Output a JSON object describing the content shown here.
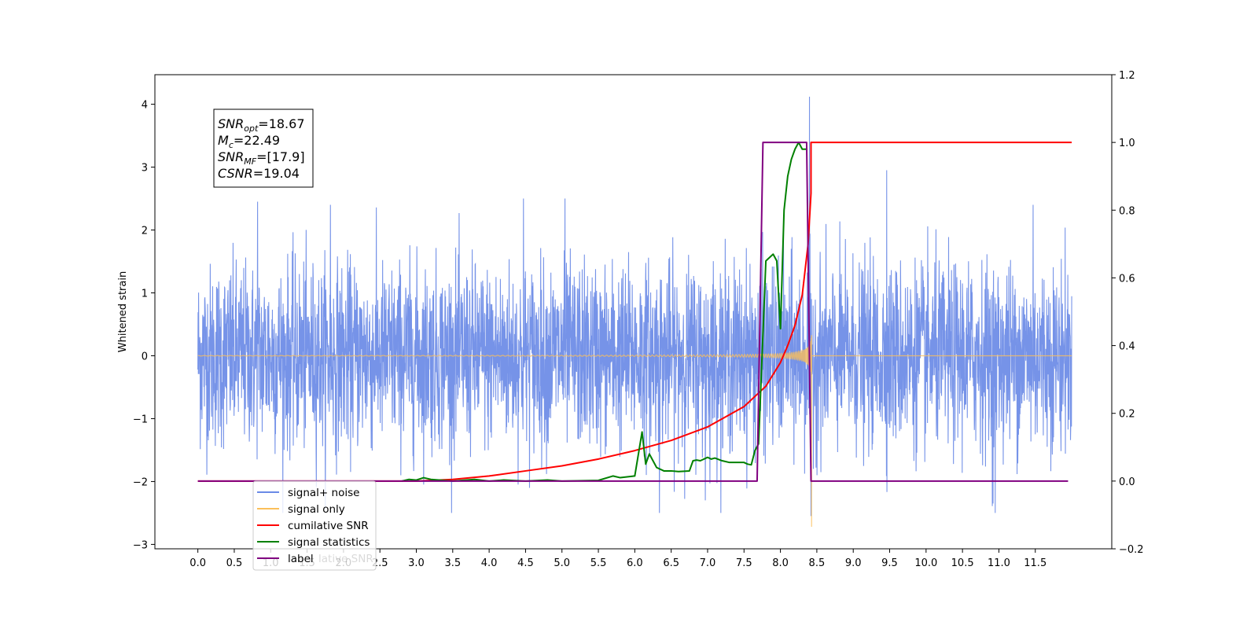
{
  "chart_data": {
    "type": "line",
    "xlabel": "",
    "ylabel": "Whitened strain",
    "xlim": [
      -0.59,
      12.55
    ],
    "ylim": [
      -3.07,
      4.47
    ],
    "y2lim": [
      -0.2,
      1.2
    ],
    "xticks": [
      0.0,
      0.5,
      1.0,
      1.5,
      2.0,
      2.5,
      3.0,
      3.5,
      4.0,
      4.5,
      5.0,
      5.5,
      6.0,
      6.5,
      7.0,
      7.5,
      8.0,
      8.5,
      9.0,
      9.5,
      10.0,
      10.5,
      11.0,
      11.5
    ],
    "xtick_labels": [
      "0.0",
      "0.5",
      "1.0",
      "1.5",
      "2.0",
      "2.5",
      "3.0",
      "3.5",
      "4.0",
      "4.5",
      "5.0",
      "5.5",
      "6.0",
      "6.5",
      "7.0",
      "7.5",
      "8.0",
      "8.5",
      "9.0",
      "9.5",
      "10.0",
      "10.5",
      "11.0",
      "11.5"
    ],
    "yticks": [
      -3,
      -2,
      -1,
      0,
      1,
      2,
      3,
      4
    ],
    "ytick_labels": [
      "−3",
      "−2",
      "−1",
      "0",
      "1",
      "2",
      "3",
      "4"
    ],
    "y2ticks": [
      -0.2,
      0.0,
      0.2,
      0.4,
      0.6,
      0.8,
      1.0,
      1.2
    ],
    "y2tick_labels": [
      "−0.2",
      "0.0",
      "0.2",
      "0.4",
      "0.6",
      "0.8",
      "1.0",
      "1.2"
    ],
    "grid": false,
    "legend_position": "lower-left",
    "info_box": {
      "lines": [
        {
          "main": "SNR",
          "sub": "opt",
          "value": "=18.67"
        },
        {
          "main": "M",
          "sub": "c",
          "value": "=22.49"
        },
        {
          "main": "SNR",
          "sub": "MF",
          "value": "=[17.9]"
        },
        {
          "main": "CSNR",
          "sub": "",
          "value": "=19.04"
        }
      ]
    },
    "series": [
      {
        "name": "signal+ noise",
        "color": "#6a8ae6",
        "axis": "left",
        "style": "noise",
        "x_range": [
          0.0,
          12.0
        ],
        "samples": 3600,
        "noise_sigma": 0.72,
        "noise_range": [
          -2.5,
          2.5
        ],
        "spikes": [
          {
            "x": 0.82,
            "y": 2.45
          },
          {
            "x": 1.82,
            "y": 2.4
          },
          {
            "x": 4.47,
            "y": 2.5
          },
          {
            "x": 5.04,
            "y": 2.5
          },
          {
            "x": 9.46,
            "y": 2.95
          },
          {
            "x": 11.47,
            "y": 2.4
          },
          {
            "x": 8.4,
            "y": 4.12
          },
          {
            "x": 6.34,
            "y": -2.5
          },
          {
            "x": 10.95,
            "y": -2.5
          },
          {
            "x": 10.92,
            "y": -2.35
          },
          {
            "x": 8.42,
            "y": -2.55
          },
          {
            "x": 6.97,
            "y": -2.3
          }
        ],
        "chirp_end": 8.43
      },
      {
        "name": "signal only",
        "color": "#fbbf5a",
        "axis": "left",
        "style": "chirp",
        "x_range": [
          0.0,
          12.0
        ],
        "tc": 8.43,
        "amp_peak": 2.6,
        "dip": -2.72
      },
      {
        "name": "cumilative SNR",
        "color": "#ff0000",
        "axis": "right",
        "x": [
          0.0,
          3.0,
          3.5,
          4.0,
          4.5,
          5.0,
          5.5,
          6.0,
          6.5,
          7.0,
          7.5,
          7.8,
          8.0,
          8.1,
          8.2,
          8.3,
          8.38,
          8.42,
          8.42,
          12.0
        ],
        "y": [
          0.0,
          0.0,
          0.005,
          0.015,
          0.03,
          0.045,
          0.065,
          0.09,
          0.12,
          0.16,
          0.22,
          0.28,
          0.35,
          0.4,
          0.46,
          0.55,
          0.7,
          0.85,
          1.0,
          1.0
        ]
      },
      {
        "name": "signal statistics",
        "color": "#008000",
        "axis": "right",
        "x": [
          2.8,
          2.9,
          3.0,
          3.1,
          3.2,
          3.5,
          3.8,
          4.0,
          4.2,
          4.5,
          4.8,
          5.0,
          5.5,
          5.7,
          5.8,
          6.0,
          6.1,
          6.15,
          6.2,
          6.25,
          6.3,
          6.4,
          6.5,
          6.6,
          6.75,
          6.8,
          6.85,
          6.9,
          7.0,
          7.05,
          7.1,
          7.2,
          7.3,
          7.5,
          7.55,
          7.6,
          7.65,
          7.7,
          7.8,
          7.9,
          7.95,
          8.0,
          8.05,
          8.1,
          8.15,
          8.2,
          8.25,
          8.3,
          8.35
        ],
        "y": [
          0.0,
          0.005,
          0.003,
          0.01,
          0.005,
          0.0,
          0.005,
          0.0,
          0.003,
          0.0,
          0.003,
          0.0,
          0.002,
          0.015,
          0.01,
          0.015,
          0.145,
          0.05,
          0.08,
          0.06,
          0.04,
          0.03,
          0.03,
          0.028,
          0.03,
          0.06,
          0.062,
          0.06,
          0.07,
          0.065,
          0.068,
          0.06,
          0.055,
          0.055,
          0.05,
          0.048,
          0.09,
          0.11,
          0.65,
          0.67,
          0.65,
          0.45,
          0.8,
          0.9,
          0.95,
          0.98,
          1.0,
          0.98,
          0.98
        ]
      },
      {
        "name": "label",
        "color": "#800080",
        "axis": "right",
        "x": [
          0.0,
          7.68,
          7.76,
          8.34,
          8.36,
          8.42,
          8.48,
          11.95
        ],
        "y": [
          0.0,
          0.0,
          1.0,
          1.0,
          1.0,
          0.0,
          0.0,
          0.0
        ]
      }
    ],
    "legend": [
      {
        "label": "signal+ noise",
        "color": "#6a8ae6"
      },
      {
        "label": "signal only",
        "color": "#fbbf5a"
      },
      {
        "label": "cumilative SNR",
        "color": "#ff0000"
      },
      {
        "label": "signal statistics",
        "color": "#008000"
      },
      {
        "label": "label",
        "color": "#800080"
      }
    ],
    "legend_ghost_text": "lative SNR"
  }
}
